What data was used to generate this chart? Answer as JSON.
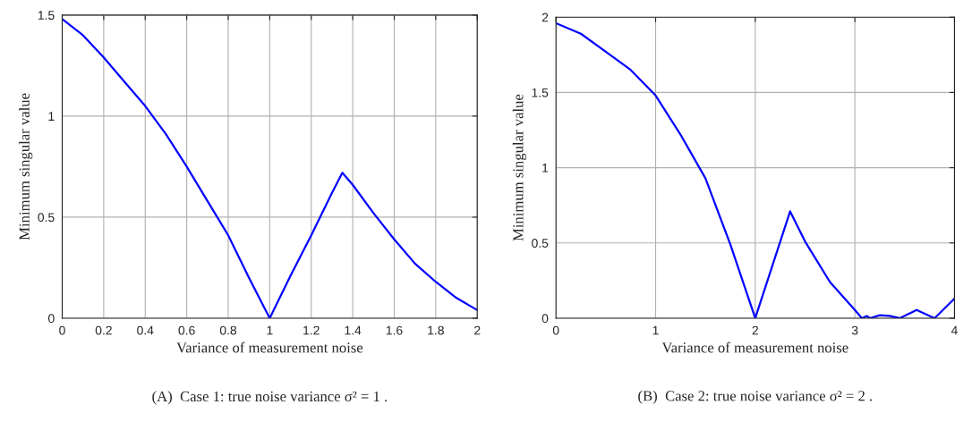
{
  "chart_data": [
    {
      "type": "line",
      "xlabel": "Variance of measurement noise",
      "ylabel": "Minimum singular value",
      "xlim": [
        0,
        2
      ],
      "ylim": [
        0,
        1.5
      ],
      "xticks": [
        0,
        0.2,
        0.4,
        0.6,
        0.8,
        1,
        1.2,
        1.4,
        1.6,
        1.8,
        2
      ],
      "yticks": [
        0,
        0.5,
        1,
        1.5
      ],
      "grid": true,
      "series": [
        {
          "color": "#0000ff",
          "x": [
            0,
            0.1,
            0.2,
            0.3,
            0.4,
            0.5,
            0.6,
            0.7,
            0.8,
            0.9,
            1.0,
            1.1,
            1.2,
            1.3,
            1.35,
            1.4,
            1.5,
            1.6,
            1.7,
            1.8,
            1.9,
            2.0
          ],
          "values": [
            1.48,
            1.4,
            1.29,
            1.17,
            1.05,
            0.91,
            0.75,
            0.58,
            0.41,
            0.2,
            0,
            0.21,
            0.41,
            0.62,
            0.72,
            0.66,
            0.52,
            0.39,
            0.27,
            0.18,
            0.1,
            0.04
          ]
        }
      ],
      "annotations": [
        "(A)  Case 1: true noise variance σ² = 1 ."
      ]
    },
    {
      "type": "line",
      "xlabel": "Variance of measurement noise",
      "ylabel": "Minimum singular value",
      "xlim": [
        0,
        4
      ],
      "ylim": [
        0,
        2
      ],
      "xticks": [
        0,
        1,
        2,
        3,
        4
      ],
      "yticks": [
        0,
        0.5,
        1,
        1.5,
        2
      ],
      "grid": true,
      "series": [
        {
          "color": "#0000ff",
          "x": [
            0,
            0.25,
            0.5,
            0.75,
            1.0,
            1.25,
            1.5,
            1.75,
            2.0,
            2.35,
            2.5,
            2.75,
            3.0,
            3.07,
            3.12,
            3.15,
            3.25,
            3.35,
            3.45,
            3.62,
            3.8,
            4.0
          ],
          "values": [
            1.96,
            1.89,
            1.77,
            1.65,
            1.48,
            1.22,
            0.93,
            0.49,
            0,
            0.71,
            0.51,
            0.24,
            0.055,
            0,
            0.015,
            0,
            0.02,
            0.015,
            0,
            0.055,
            0,
            0.13
          ]
        }
      ],
      "annotations": [
        "(B)  Case 2: true noise variance σ² = 2 ."
      ]
    }
  ]
}
